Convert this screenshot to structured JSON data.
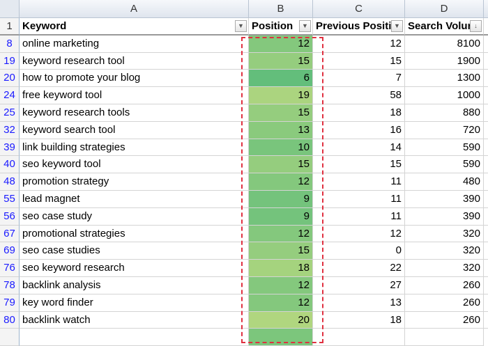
{
  "columns": {
    "a": "A",
    "b": "B",
    "c": "C",
    "d": "D"
  },
  "header": {
    "row": "1",
    "keyword": "Keyword",
    "position": "Position",
    "previous": "Previous Positi",
    "volume": "Search Volur"
  },
  "icons": {
    "filter_dropdown": "dropdown-arrow-icon",
    "filter_active": "filter-icon",
    "sort_desc": "sort-descending-icon"
  },
  "rows": [
    {
      "n": "8",
      "k": "online marketing",
      "p": 12,
      "pp": 12,
      "v": 8100
    },
    {
      "n": "19",
      "k": "keyword research tool",
      "p": 15,
      "pp": 15,
      "v": 1900
    },
    {
      "n": "20",
      "k": "how to promote your blog",
      "p": 6,
      "pp": 7,
      "v": 1300
    },
    {
      "n": "24",
      "k": "free keyword tool",
      "p": 19,
      "pp": 58,
      "v": 1000
    },
    {
      "n": "25",
      "k": "keyword research tools",
      "p": 15,
      "pp": 18,
      "v": 880
    },
    {
      "n": "32",
      "k": "keyword search tool",
      "p": 13,
      "pp": 16,
      "v": 720
    },
    {
      "n": "39",
      "k": "link building strategies",
      "p": 10,
      "pp": 14,
      "v": 590
    },
    {
      "n": "40",
      "k": "seo keyword tool",
      "p": 15,
      "pp": 15,
      "v": 590
    },
    {
      "n": "48",
      "k": "promotion strategy",
      "p": 12,
      "pp": 11,
      "v": 480
    },
    {
      "n": "55",
      "k": "lead magnet",
      "p": 9,
      "pp": 11,
      "v": 390
    },
    {
      "n": "56",
      "k": "seo case study",
      "p": 9,
      "pp": 11,
      "v": 390
    },
    {
      "n": "67",
      "k": "promotional strategies",
      "p": 12,
      "pp": 12,
      "v": 320
    },
    {
      "n": "69",
      "k": "seo case studies",
      "p": 15,
      "pp": 0,
      "v": 320
    },
    {
      "n": "76",
      "k": "seo keyword research",
      "p": 18,
      "pp": 22,
      "v": 320
    },
    {
      "n": "78",
      "k": "backlink analysis",
      "p": 12,
      "pp": 27,
      "v": 260
    },
    {
      "n": "79",
      "k": "key word finder",
      "p": 12,
      "pp": 13,
      "v": 260
    },
    {
      "n": "80",
      "k": "backlink watch",
      "p": 20,
      "pp": 18,
      "v": 260
    }
  ],
  "colors": {
    "scale_low": "#63be7b",
    "scale_high": "#b0d67f",
    "highlight_border": "#e03040"
  }
}
